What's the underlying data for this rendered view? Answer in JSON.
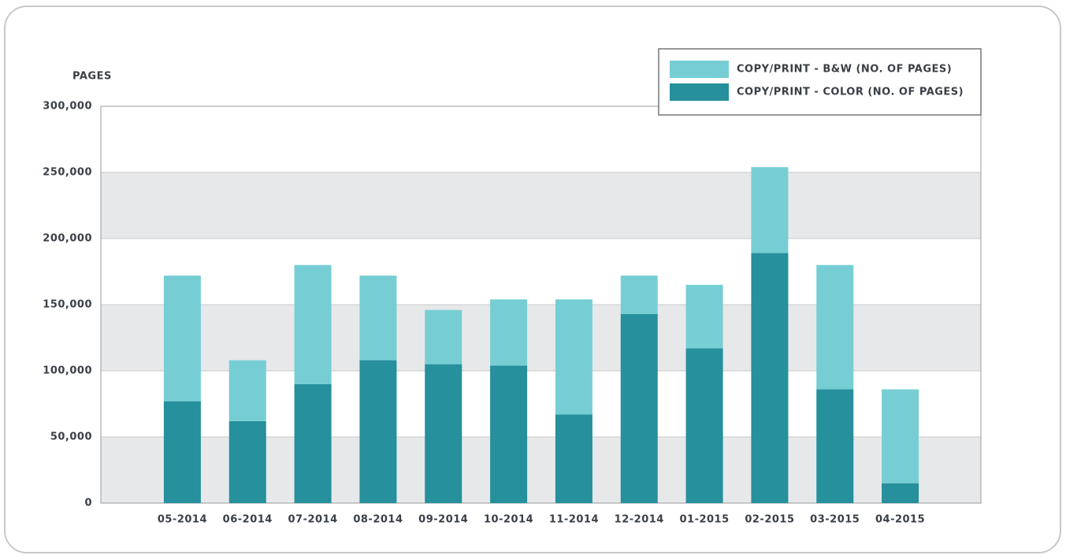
{
  "chart_data": {
    "type": "stacked_bar",
    "y_axis_label": "PAGES",
    "categories": [
      "05-2014",
      "06-2014",
      "07-2014",
      "08-2014",
      "09-2014",
      "10-2014",
      "11-2014",
      "12-2014",
      "01-2015",
      "02-2015",
      "03-2015",
      "04-2015"
    ],
    "series": [
      {
        "name": "COPY/PRINT - B&W (NO. OF PAGES)",
        "color": "#76ced4",
        "values": [
          95000,
          46000,
          90000,
          64000,
          41000,
          50000,
          87000,
          29000,
          48000,
          65000,
          94000,
          71000
        ]
      },
      {
        "name": "COPY/PRINT - COLOR (NO. OF PAGES)",
        "color": "#26909c",
        "values": [
          77000,
          62000,
          90000,
          108000,
          105000,
          104000,
          67000,
          143000,
          117000,
          189000,
          86000,
          15000
        ]
      }
    ],
    "ylim": [
      0,
      300000
    ],
    "yticks": [
      0,
      {
        "value": 50000,
        "label": "50,000"
      },
      {
        "value": 100000,
        "label": "100,000"
      },
      {
        "value": 150000,
        "label": "150,000"
      },
      {
        "value": 200000,
        "label": "200,000"
      },
      {
        "value": 250000,
        "label": "250,000"
      },
      {
        "value": 300000,
        "label": "300,000"
      }
    ],
    "grid": true,
    "legend": "top-right"
  }
}
